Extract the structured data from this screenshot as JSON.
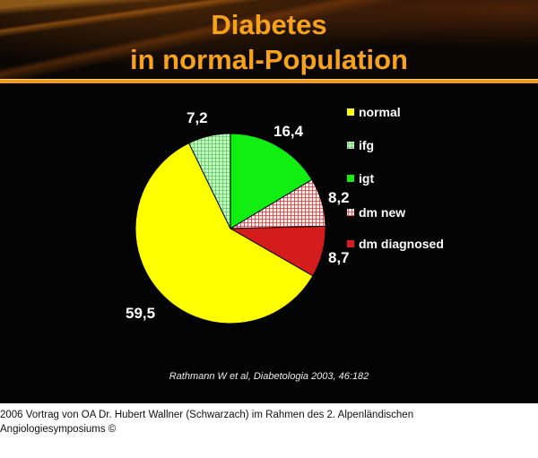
{
  "title_line1": "Diabetes",
  "title_line2": "in normal-Population",
  "citation": "Rathmann W et al, Diabetologia 2003, 46:182",
  "caption_line1": " 2006 Vortrag von OA Dr. Hubert Wallner (Schwarzach) im Rahmen des 2. Alpenländischen",
  "caption_line2": "Angiologiesymposiums ©",
  "chart_data": {
    "type": "pie",
    "title": "",
    "start": "top, clockwise",
    "legend_placement": "right",
    "slices": [
      {
        "name": "igt",
        "value": 16.4,
        "label": "16,4",
        "color": "#11ee11",
        "pattern": "solid"
      },
      {
        "name": "dm new",
        "value": 8.2,
        "label": "8,2",
        "color": "#e03030",
        "pattern": "grid"
      },
      {
        "name": "dm diagnosed",
        "value": 8.7,
        "label": "8,7",
        "color": "#d41c1c",
        "pattern": "solid"
      },
      {
        "name": "normal",
        "value": 59.5,
        "label": "59,5",
        "color": "#ffff00",
        "pattern": "solid"
      },
      {
        "name": "ifg",
        "value": 7.2,
        "label": "7,2",
        "color": "#66dd66",
        "pattern": "grid"
      }
    ],
    "legend": [
      "normal",
      "ifg",
      "igt",
      "dm new",
      "dm diagnosed"
    ]
  }
}
